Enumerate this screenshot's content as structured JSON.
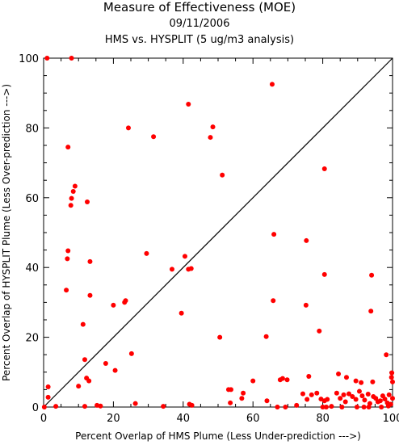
{
  "chart_data": {
    "type": "scatter",
    "title": "Measure of Effectiveness (MOE)",
    "subtitle_date": "09/11/2006",
    "subtitle_analysis": "HMS vs. HYSPLIT  (5 ug/m3 analysis)",
    "xlabel": "Percent Overlap of HMS Plume (Less Under-prediction --->)",
    "ylabel": "Percent Overlap of HYSPLIT Plume (Less Over-prediction --->)",
    "xlim": [
      0,
      100
    ],
    "ylim": [
      0,
      100
    ],
    "xticks": [
      "0",
      "20",
      "40",
      "60",
      "80",
      "100"
    ],
    "yticks": [
      "0",
      "20",
      "40",
      "60",
      "80",
      "100"
    ],
    "point_color": "#ff0000",
    "reference_line": {
      "from": [
        0,
        0
      ],
      "to": [
        100,
        100
      ]
    },
    "points": [
      [
        1,
        100
      ],
      [
        8,
        100
      ],
      [
        65.5,
        92.5
      ],
      [
        41.5,
        86.8
      ],
      [
        48.5,
        80.3
      ],
      [
        24.3,
        80
      ],
      [
        31.5,
        77.5
      ],
      [
        47.8,
        77.3
      ],
      [
        7,
        74.5
      ],
      [
        80.5,
        68.3
      ],
      [
        51.2,
        66.5
      ],
      [
        9,
        63.3
      ],
      [
        8.5,
        61.8
      ],
      [
        8,
        59.8
      ],
      [
        12.5,
        58.8
      ],
      [
        7.8,
        57.8
      ],
      [
        66,
        49.5
      ],
      [
        75.3,
        47.7
      ],
      [
        7,
        44.8
      ],
      [
        29.5,
        44
      ],
      [
        40.5,
        43.2
      ],
      [
        6.8,
        42.5
      ],
      [
        13.3,
        41.7
      ],
      [
        36.8,
        39.5
      ],
      [
        41.5,
        39.5
      ],
      [
        42.3,
        39.7
      ],
      [
        80.5,
        38
      ],
      [
        94,
        37.8
      ],
      [
        6.5,
        33.5
      ],
      [
        13.3,
        32
      ],
      [
        65.8,
        30.5
      ],
      [
        23.2,
        30
      ],
      [
        23.5,
        30.5
      ],
      [
        20,
        29.2
      ],
      [
        75.2,
        29.2
      ],
      [
        93.8,
        27.5
      ],
      [
        39.5,
        26.9
      ],
      [
        11.3,
        23.7
      ],
      [
        79,
        21.8
      ],
      [
        50.5,
        20
      ],
      [
        63.8,
        20.2
      ],
      [
        98.2,
        15
      ],
      [
        25.2,
        15.3
      ],
      [
        11.8,
        13.6
      ],
      [
        17.8,
        12.5
      ],
      [
        20.5,
        10.5
      ],
      [
        99.8,
        9.8
      ],
      [
        84.5,
        9.5
      ],
      [
        99.7,
        8.5
      ],
      [
        12.3,
        8.3
      ],
      [
        86.8,
        8.5
      ],
      [
        13,
        7.5
      ],
      [
        60,
        7.5
      ],
      [
        67.8,
        7.8
      ],
      [
        68.5,
        8.2
      ],
      [
        69.8,
        7.8
      ],
      [
        76,
        8.8
      ],
      [
        89.5,
        7.5
      ],
      [
        91,
        7
      ],
      [
        94.3,
        7.2
      ],
      [
        100,
        7.2
      ],
      [
        1.3,
        5.8
      ],
      [
        10,
        6
      ],
      [
        53,
        5
      ],
      [
        53.7,
        5
      ],
      [
        57.2,
        4
      ],
      [
        1.3,
        2.8
      ],
      [
        56.8,
        2.5
      ],
      [
        64,
        1.8
      ],
      [
        72.5,
        0.5
      ],
      [
        74.3,
        3.8
      ],
      [
        75.5,
        2.2
      ],
      [
        76.8,
        3.5
      ],
      [
        78.3,
        4
      ],
      [
        79.5,
        2.3
      ],
      [
        80.5,
        1.8
      ],
      [
        81.3,
        2.2
      ],
      [
        82.5,
        0.2
      ],
      [
        84,
        4
      ],
      [
        85,
        2.5
      ],
      [
        86,
        3.5
      ],
      [
        86.5,
        1.5
      ],
      [
        87.5,
        3.8
      ],
      [
        88.5,
        3
      ],
      [
        89.5,
        2.2
      ],
      [
        90.5,
        4.5
      ],
      [
        91.3,
        3.2
      ],
      [
        92,
        2
      ],
      [
        93,
        3.7
      ],
      [
        93.5,
        1
      ],
      [
        94.5,
        3
      ],
      [
        95.2,
        2.5
      ],
      [
        95.8,
        1.5
      ],
      [
        96.5,
        1.8
      ],
      [
        97.2,
        3.2
      ],
      [
        97.8,
        2.3
      ],
      [
        98.5,
        1.2
      ],
      [
        99,
        3.5
      ],
      [
        99.5,
        0.8
      ],
      [
        100,
        2.5
      ],
      [
        0.2,
        0
      ],
      [
        3.5,
        0.2
      ],
      [
        11.8,
        0.2
      ],
      [
        15.3,
        0.5
      ],
      [
        16.3,
        0.3
      ],
      [
        26.3,
        1
      ],
      [
        34.3,
        0.2
      ],
      [
        41.8,
        0.8
      ],
      [
        42.5,
        0.5
      ],
      [
        53.5,
        1.2
      ],
      [
        67,
        0
      ],
      [
        69.3,
        0
      ],
      [
        80,
        0
      ],
      [
        81,
        0
      ],
      [
        85.5,
        0
      ],
      [
        89.8,
        0
      ],
      [
        91.8,
        0
      ],
      [
        93.2,
        0
      ],
      [
        96.8,
        0
      ],
      [
        98.8,
        0.3
      ]
    ]
  }
}
